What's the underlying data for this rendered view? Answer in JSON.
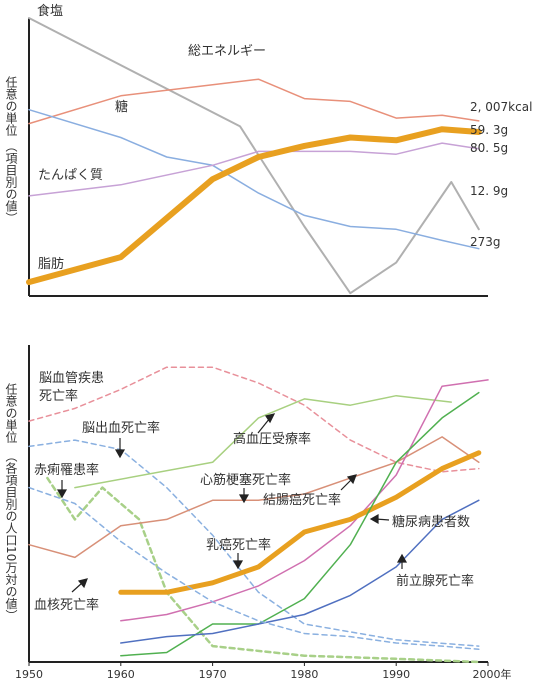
{
  "chart_data": [
    {
      "type": "line",
      "ylabel": "任意の単位 (項目別の値)",
      "series": [
        {
          "name": "食塩",
          "color": "#b0b0b0",
          "width": 2,
          "points": [
            [
              1950,
              100
            ],
            [
              1973,
              61
            ],
            [
              1980,
              25
            ],
            [
              1985,
              1
            ],
            [
              1990,
              12
            ],
            [
              1996,
              41
            ],
            [
              1999,
              24
            ]
          ],
          "label": "",
          "end_label": "12. 9g",
          "name_label": "食塩"
        },
        {
          "name": "総エネルギー",
          "color": "#e8907a",
          "width": 1.5,
          "points": [
            [
              1950,
              62
            ],
            [
              1960,
              72
            ],
            [
              1970,
              76
            ],
            [
              1975,
              78
            ],
            [
              1980,
              71
            ],
            [
              1985,
              70
            ],
            [
              1990,
              64
            ],
            [
              1995,
              65
            ],
            [
              1999,
              63
            ]
          ],
          "end_label": "2, 007kcal",
          "name_label": "総エネルギー"
        },
        {
          "name": "糖",
          "color": "#8aaee0",
          "width": 1.5,
          "points": [
            [
              1950,
              67
            ],
            [
              1960,
              57
            ],
            [
              1965,
              50
            ],
            [
              1970,
              47
            ],
            [
              1975,
              37
            ],
            [
              1980,
              29
            ],
            [
              1985,
              25
            ],
            [
              1990,
              24
            ],
            [
              1995,
              20
            ],
            [
              1999,
              17
            ]
          ],
          "end_label": "273g",
          "name_label": "糖"
        },
        {
          "name": "たんぱく質",
          "color": "#c7a2d6",
          "width": 1.5,
          "points": [
            [
              1950,
              36
            ],
            [
              1960,
              40
            ],
            [
              1970,
              47
            ],
            [
              1975,
              52
            ],
            [
              1980,
              52
            ],
            [
              1985,
              52
            ],
            [
              1990,
              51
            ],
            [
              1995,
              55
            ],
            [
              1999,
              53
            ]
          ],
          "end_label": "80. 5g",
          "name_label": "たんぱく質"
        },
        {
          "name": "脂肪",
          "color": "#e8a020",
          "width": 6,
          "points": [
            [
              1950,
              5
            ],
            [
              1960,
              14
            ],
            [
              1970,
              42
            ],
            [
              1975,
              50
            ],
            [
              1980,
              54
            ],
            [
              1985,
              57
            ],
            [
              1990,
              56
            ],
            [
              1995,
              60
            ],
            [
              1999,
              59
            ]
          ],
          "end_label": "59. 3g",
          "name_label": "脂肪"
        }
      ]
    },
    {
      "type": "line",
      "ylabel": "任意の単位 (各項目別の人口10万対の値)",
      "x_ticks": [
        "1950",
        "1960",
        "1970",
        "1980",
        "1990",
        "2000年"
      ],
      "series": [
        {
          "name": "脳血管疾患死亡率",
          "color": "#e8909a",
          "width": 1.5,
          "dash": "5,4",
          "points": [
            [
              1950,
              76
            ],
            [
              1955,
              80
            ],
            [
              1960,
              86
            ],
            [
              1965,
              93
            ],
            [
              1970,
              93
            ],
            [
              1975,
              88
            ],
            [
              1980,
              81
            ],
            [
              1985,
              70
            ],
            [
              1990,
              63
            ],
            [
              1995,
              60
            ],
            [
              1999,
              61
            ]
          ]
        },
        {
          "name": "脳出血死亡率",
          "color": "#8ab0e0",
          "width": 1.5,
          "dash": "5,4",
          "points": [
            [
              1950,
              68
            ],
            [
              1955,
              70
            ],
            [
              1960,
              67
            ],
            [
              1965,
              55
            ],
            [
              1970,
              40
            ],
            [
              1975,
              22
            ],
            [
              1980,
              12
            ],
            [
              1990,
              7
            ],
            [
              1999,
              5
            ]
          ]
        },
        {
          "name": "赤痢罹患率",
          "color": "#a8d088",
          "width": 2.5,
          "dash": "5,4",
          "points": [
            [
              1952,
              58
            ],
            [
              1955,
              45
            ],
            [
              1958,
              55
            ],
            [
              1962,
              45
            ],
            [
              1965,
              22
            ],
            [
              1970,
              5
            ],
            [
              1980,
              2
            ],
            [
              1990,
              1
            ],
            [
              1999,
              0
            ]
          ]
        },
        {
          "name": "高血圧受療率",
          "color": "#a8d080",
          "width": 1.5,
          "points": [
            [
              1955,
              55
            ],
            [
              1970,
              63
            ],
            [
              1975,
              77
            ],
            [
              1980,
              83
            ],
            [
              1985,
              81
            ],
            [
              1990,
              84
            ],
            [
              1996,
              82
            ]
          ]
        },
        {
          "name": "心筋梗塞死亡率",
          "color": "#d89078",
          "width": 1.5,
          "points": [
            [
              1950,
              37
            ],
            [
              1955,
              33
            ],
            [
              1960,
              43
            ],
            [
              1965,
              45
            ],
            [
              1970,
              51
            ],
            [
              1975,
              51
            ],
            [
              1980,
              53
            ],
            [
              1985,
              58
            ],
            [
              1990,
              63
            ],
            [
              1995,
              71
            ],
            [
              1999,
              63
            ]
          ]
        },
        {
          "name": "結腸癌死亡率",
          "color": "#d070b0",
          "width": 1.5,
          "points": [
            [
              1960,
              13
            ],
            [
              1965,
              15
            ],
            [
              1970,
              19
            ],
            [
              1975,
              24
            ],
            [
              1980,
              32
            ],
            [
              1985,
              43
            ],
            [
              1990,
              59
            ],
            [
              1995,
              87
            ],
            [
              2000,
              89
            ]
          ]
        },
        {
          "name": "糖尿病患者数",
          "color": "#e8a020",
          "width": 5,
          "points": [
            [
              1960,
              22
            ],
            [
              1965,
              22
            ],
            [
              1970,
              25
            ],
            [
              1975,
              30
            ],
            [
              1980,
              41
            ],
            [
              1985,
              45
            ],
            [
              1990,
              52
            ],
            [
              1995,
              61
            ],
            [
              1999,
              66
            ]
          ]
        },
        {
          "name": "乳癌死亡率",
          "color": "#50b050",
          "width": 1.5,
          "points": [
            [
              1960,
              2
            ],
            [
              1965,
              3
            ],
            [
              1970,
              12
            ],
            [
              1975,
              12
            ],
            [
              1980,
              20
            ],
            [
              1985,
              37
            ],
            [
              1990,
              63
            ],
            [
              1995,
              77
            ],
            [
              1999,
              85
            ]
          ]
        },
        {
          "name": "前立腺死亡率",
          "color": "#5070c0",
          "width": 1.5,
          "points": [
            [
              1960,
              6
            ],
            [
              1965,
              8
            ],
            [
              1970,
              9
            ],
            [
              1975,
              12
            ],
            [
              1980,
              15
            ],
            [
              1985,
              21
            ],
            [
              1990,
              30
            ],
            [
              1995,
              45
            ],
            [
              1999,
              51
            ]
          ]
        },
        {
          "name": "結核死亡率",
          "color": "#8ab0e0",
          "width": 1.5,
          "dash": "5,4",
          "points": [
            [
              1950,
              55
            ],
            [
              1955,
              50
            ],
            [
              1960,
              38
            ],
            [
              1965,
              28
            ],
            [
              1970,
              19
            ],
            [
              1975,
              13
            ],
            [
              1980,
              9
            ],
            [
              1985,
              8
            ],
            [
              1990,
              6
            ],
            [
              1995,
              5
            ],
            [
              1999,
              4
            ]
          ]
        }
      ]
    }
  ],
  "labels": {
    "top": {
      "ylabel1": "任意の単位",
      "ylabel2": "（項目別の値）",
      "shoku": "食塩",
      "soene": "総エネルギー",
      "tou": "糖",
      "tanpaku": "たんぱく質",
      "shibou": "脂肪",
      "v_kcal": "2, 007kcal",
      "v_shibou": "59. 3g",
      "v_tanpaku": "80. 5g",
      "v_shoku": "12. 9g",
      "v_tou": "273g"
    },
    "bottom": {
      "ylabel1": "任意の単位",
      "ylabel2": "（各項目別の人口10万対の値）",
      "noukekkan1": "脳血管疾患",
      "noukekkan2": "死亡率",
      "noushukketsu": "脳出血死亡率",
      "sekiri": "赤痢罹患率",
      "kouketsuatsu": "高血圧受療率",
      "shinkin": "心筋梗塞死亡率",
      "ketchou": "結腸癌死亡率",
      "tounyou": "糖尿病患者数",
      "nyuugan": "乳癌死亡率",
      "zenritsu": "前立腺死亡率",
      "kekkaku": "血核死亡率"
    },
    "xticks": [
      "1950",
      "1960",
      "1970",
      "1980",
      "1990",
      "2000年"
    ]
  }
}
